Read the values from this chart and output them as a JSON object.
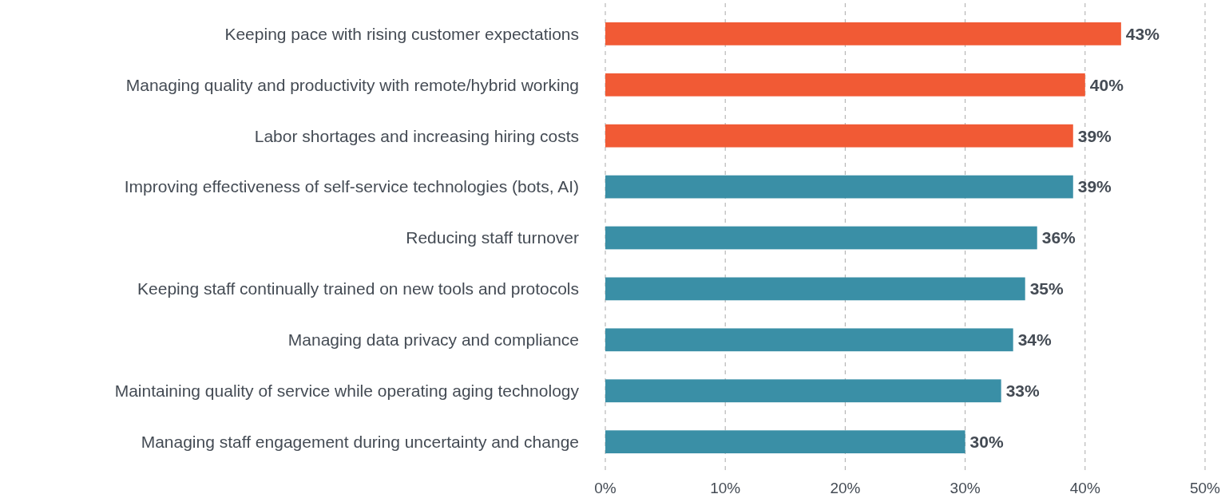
{
  "chart_data": {
    "type": "bar",
    "orientation": "horizontal",
    "categories": [
      "Keeping pace with rising customer expectations",
      "Managing quality and productivity with remote/hybrid working",
      "Labor shortages and increasing hiring costs",
      "Improving effectiveness of self-service technologies (bots, AI)",
      "Reducing staff turnover",
      "Keeping staff continually trained on new tools and protocols",
      "Managing data privacy and compliance",
      "Maintaining quality of service while operating aging technology",
      "Managing staff engagement during uncertainty and change"
    ],
    "values": [
      43,
      40,
      39,
      39,
      36,
      35,
      34,
      33,
      30
    ],
    "colors": [
      "#f15a35",
      "#f15a35",
      "#f15a35",
      "#3a8fa6",
      "#3a8fa6",
      "#3a8fa6",
      "#3a8fa6",
      "#3a8fa6",
      "#3a8fa6"
    ],
    "value_labels": [
      "43%",
      "40%",
      "39%",
      "39%",
      "36%",
      "35%",
      "34%",
      "33%",
      "30%"
    ],
    "xlim": [
      0,
      50
    ],
    "xticks": [
      {
        "value": 0,
        "label": "0%"
      },
      {
        "value": 10,
        "label": "10%"
      },
      {
        "value": 20,
        "label": "20%"
      },
      {
        "value": 30,
        "label": "30%"
      },
      {
        "value": 40,
        "label": "40%"
      },
      {
        "value": 50,
        "label": "50%"
      }
    ],
    "grid": "x"
  }
}
